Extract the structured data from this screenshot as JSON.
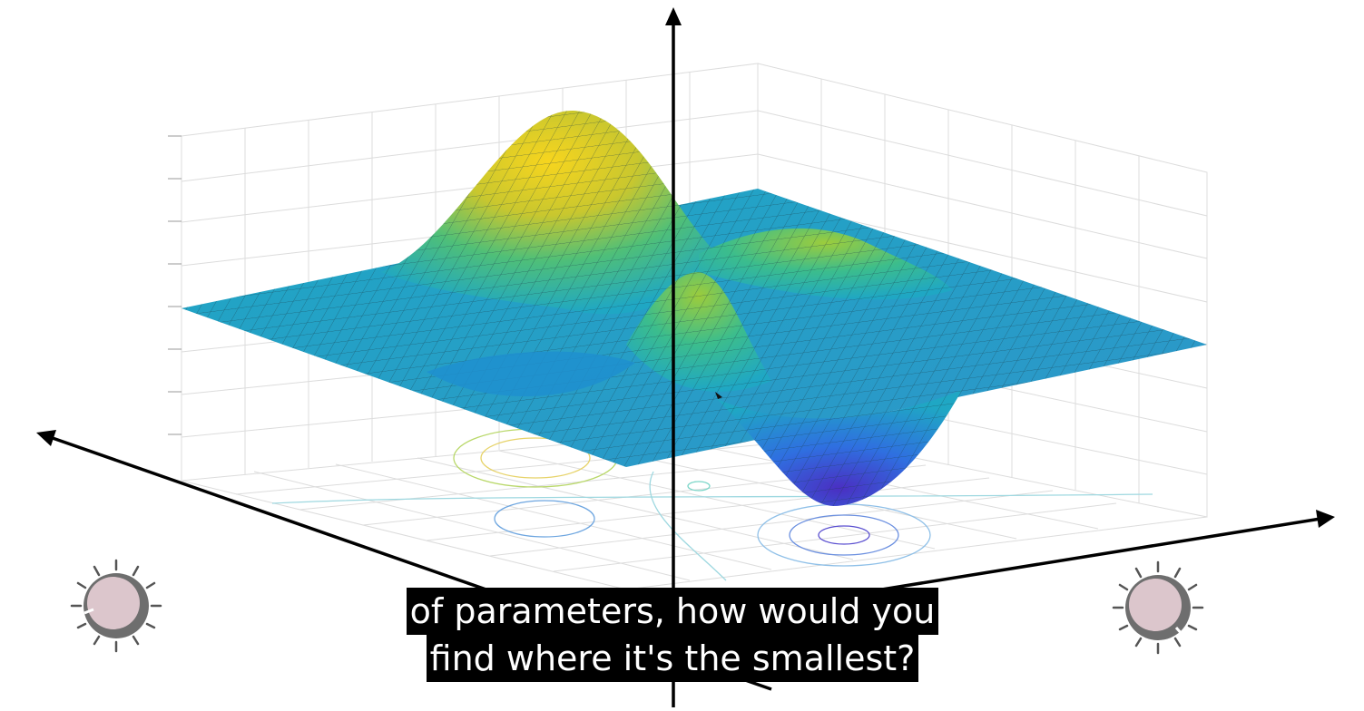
{
  "scene": {
    "background": "#ffffff",
    "grid_color": "#dcdcdc",
    "axis_color": "#000000",
    "surface_colormap": "parula",
    "surface_colors": [
      "#3d2db4",
      "#2f6fe0",
      "#1aa6c9",
      "#2fbf8a",
      "#a6c93a",
      "#f2c12e",
      "#f7e617"
    ],
    "peaks": 2,
    "valleys": 2
  },
  "knobs": [
    {
      "name": "left-knob",
      "fill": "#d8c0c8",
      "ring": "#6b6b6b"
    },
    {
      "name": "right-knob",
      "fill": "#d8c0c8",
      "ring": "#6b6b6b"
    }
  ],
  "caption": {
    "line1": "of parameters, how would you",
    "line2": "find where it's the smallest?",
    "background": "#000000",
    "color": "#ffffff"
  }
}
